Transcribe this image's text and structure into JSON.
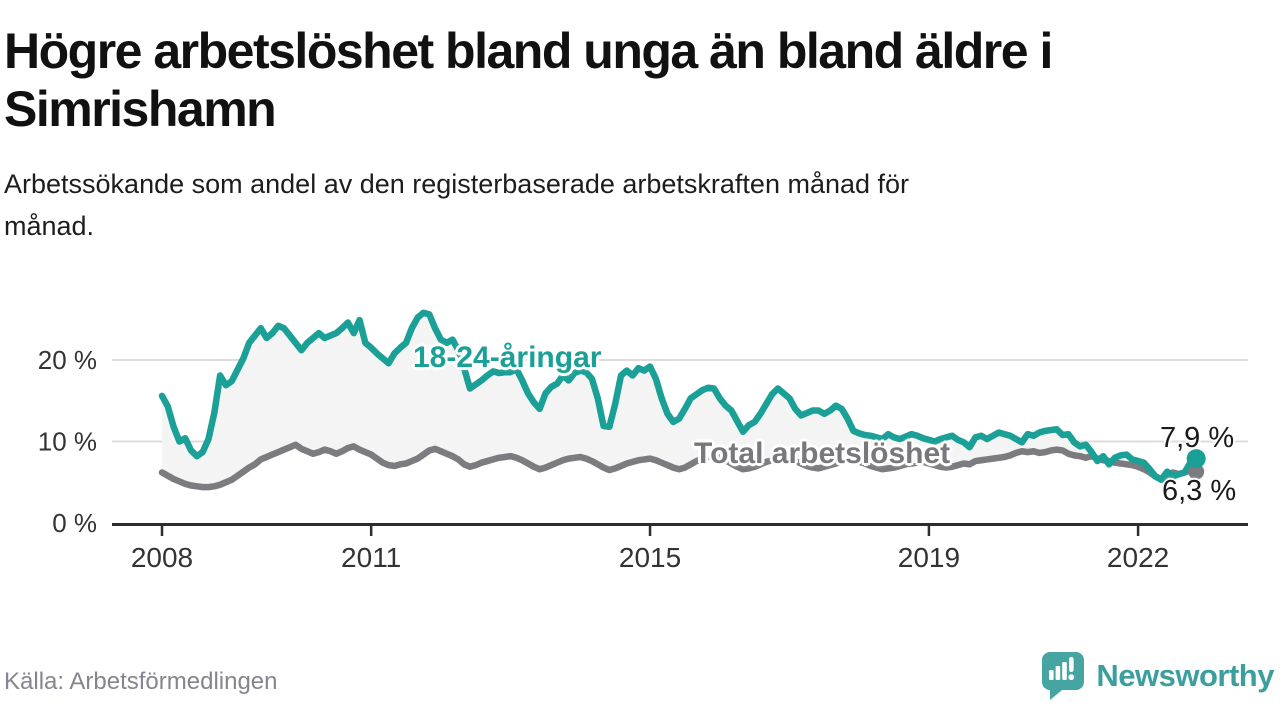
{
  "title_lines": [
    "Högre arbetslöshet bland unga än bland äldre i",
    "Simrishamn"
  ],
  "subtitle_lines": [
    "Arbetssökande som andel av den registerbaserade arbetskraften månad för",
    "månad."
  ],
  "source": {
    "text": "Källa: Arbetsförmedlingen"
  },
  "brand": {
    "name": "Newsworthy",
    "color": "#3d9e9e",
    "icon": "speech-bubble-bar-chart"
  },
  "chart_data": {
    "type": "line",
    "unit": "%",
    "start": "2008-01",
    "end": "2022-11",
    "frequency": "monthly",
    "grid": "horizontal",
    "ylim": [
      0,
      27
    ],
    "fill_between": "#f4f4f4",
    "x_tick_years": [
      2008,
      2011,
      2015,
      2019,
      2022
    ],
    "y_ticks": [
      {
        "value": 20,
        "label": "20 %"
      },
      {
        "value": 10,
        "label": "10 %"
      },
      {
        "value": 0,
        "label": "0 %"
      }
    ],
    "series": [
      {
        "name": "18-24-åringar",
        "color": "#1aa096",
        "end_label": "7,9 %",
        "end_value": 7.9,
        "values": [
          15.6,
          14.3,
          11.8,
          10.0,
          10.4,
          8.9,
          8.2,
          8.7,
          10.3,
          13.5,
          18.1,
          16.9,
          17.4,
          18.8,
          20.2,
          22.1,
          23.0,
          23.9,
          22.7,
          23.3,
          24.2,
          23.9,
          23.0,
          22.1,
          21.2,
          22.1,
          22.7,
          23.3,
          22.7,
          23.0,
          23.3,
          23.9,
          24.6,
          23.3,
          24.9,
          22.1,
          21.5,
          20.8,
          20.2,
          19.6,
          20.8,
          21.5,
          22.1,
          23.9,
          25.2,
          25.8,
          25.6,
          23.9,
          22.5,
          22.1,
          22.5,
          21.2,
          19.0,
          16.5,
          17.0,
          17.5,
          18.1,
          18.6,
          18.4,
          18.5,
          18.5,
          18.9,
          17.5,
          15.9,
          14.8,
          14.0,
          15.9,
          16.7,
          17.1,
          18.1,
          17.5,
          18.4,
          18.7,
          18.5,
          17.7,
          15.3,
          11.9,
          11.8,
          14.6,
          18.1,
          18.7,
          18.1,
          19.0,
          18.7,
          19.2,
          17.7,
          15.3,
          13.4,
          12.4,
          12.8,
          14.0,
          15.3,
          15.8,
          16.3,
          16.6,
          16.5,
          15.3,
          14.4,
          13.8,
          12.5,
          11.2,
          12.0,
          12.4,
          13.4,
          14.6,
          15.8,
          16.5,
          15.9,
          15.3,
          14.0,
          13.2,
          13.5,
          13.8,
          13.8,
          13.4,
          13.8,
          14.4,
          14.0,
          12.8,
          11.3,
          11.0,
          10.8,
          10.7,
          10.5,
          10.3,
          10.9,
          10.5,
          10.3,
          10.6,
          10.9,
          10.7,
          10.4,
          10.2,
          10.0,
          10.3,
          10.5,
          10.7,
          10.2,
          9.9,
          9.3,
          10.5,
          10.7,
          10.3,
          10.7,
          11.1,
          10.9,
          10.7,
          10.3,
          9.9,
          10.9,
          10.7,
          11.1,
          11.3,
          11.4,
          11.5,
          10.8,
          10.9,
          9.9,
          9.4,
          9.6,
          8.7,
          7.6,
          8.2,
          7.2,
          8.0,
          8.3,
          8.4,
          7.8,
          7.6,
          7.4,
          6.6,
          5.7,
          5.3,
          6.3,
          5.7,
          6.0,
          6.2,
          7.4,
          7.9
        ]
      },
      {
        "name": "Total arbetslöshet",
        "color": "#7c7c80",
        "end_label": "6,3 %",
        "end_value": 6.3,
        "values": [
          6.2,
          5.8,
          5.4,
          5.1,
          4.8,
          4.6,
          4.5,
          4.4,
          4.4,
          4.5,
          4.7,
          5.0,
          5.3,
          5.8,
          6.3,
          6.8,
          7.2,
          7.8,
          8.1,
          8.4,
          8.7,
          9.0,
          9.3,
          9.6,
          9.1,
          8.8,
          8.5,
          8.7,
          9.0,
          8.8,
          8.5,
          8.8,
          9.2,
          9.4,
          9.0,
          8.7,
          8.4,
          7.9,
          7.4,
          7.1,
          7.0,
          7.2,
          7.3,
          7.6,
          7.9,
          8.4,
          8.9,
          9.1,
          8.8,
          8.5,
          8.2,
          7.8,
          7.2,
          6.9,
          7.1,
          7.4,
          7.6,
          7.8,
          8.0,
          8.1,
          8.2,
          8.0,
          7.7,
          7.3,
          6.9,
          6.6,
          6.8,
          7.1,
          7.4,
          7.7,
          7.9,
          8.0,
          8.1,
          7.9,
          7.6,
          7.2,
          6.8,
          6.5,
          6.7,
          7.0,
          7.3,
          7.5,
          7.7,
          7.8,
          7.9,
          7.7,
          7.4,
          7.1,
          6.8,
          6.6,
          6.8,
          7.2,
          7.6,
          7.9,
          8.1,
          8.2,
          8.0,
          7.7,
          7.3,
          6.9,
          6.6,
          6.7,
          6.9,
          7.2,
          7.5,
          7.7,
          7.9,
          8.0,
          7.9,
          7.6,
          7.3,
          7.0,
          6.8,
          6.7,
          6.9,
          7.1,
          7.3,
          7.5,
          7.6,
          7.7,
          7.5,
          7.3,
          7.0,
          6.8,
          6.6,
          6.7,
          6.8,
          7.0,
          7.2,
          7.3,
          7.4,
          7.5,
          7.3,
          7.1,
          6.9,
          6.8,
          6.9,
          7.1,
          7.3,
          7.2,
          7.6,
          7.7,
          7.8,
          7.9,
          8.0,
          8.1,
          8.3,
          8.6,
          8.8,
          8.7,
          8.8,
          8.6,
          8.7,
          8.9,
          9.0,
          8.9,
          8.5,
          8.3,
          8.2,
          8.0,
          8.2,
          7.9,
          7.7,
          7.6,
          7.4,
          7.3,
          7.2,
          7.1,
          6.9,
          6.6,
          6.2,
          5.7,
          5.4,
          5.9,
          6.2,
          6.0,
          6.2,
          6.5,
          6.3
        ]
      }
    ]
  }
}
